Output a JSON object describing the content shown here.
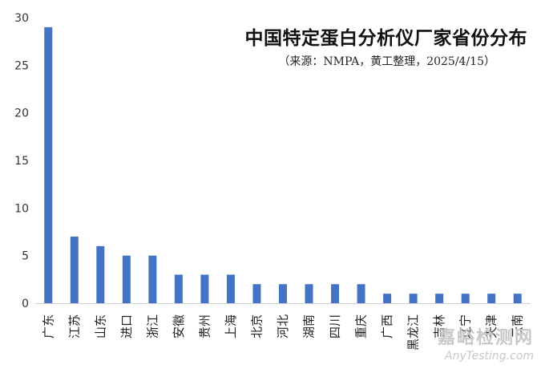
{
  "chart_data": {
    "type": "bar",
    "title": "中国特定蛋白分析仪厂家省份分布",
    "subtitle": "（来源：NMPA，黄工整理，2025/4/15）",
    "categories": [
      "广东",
      "江苏",
      "山东",
      "进口",
      "浙江",
      "安徽",
      "贵州",
      "上海",
      "北京",
      "河北",
      "湖南",
      "四川",
      "重庆",
      "广西",
      "黑龙江",
      "吉林",
      "辽宁",
      "天津",
      "云南"
    ],
    "values": [
      29,
      7,
      6,
      5,
      5,
      3,
      3,
      3,
      2,
      2,
      2,
      2,
      2,
      1,
      1,
      1,
      1,
      1,
      1
    ],
    "ylim": [
      0,
      30
    ],
    "yticks": [
      "0",
      "5",
      "10",
      "15",
      "20",
      "25",
      "30"
    ],
    "xlabel": "",
    "ylabel": "",
    "bar_color": "#4472c4",
    "grid": false,
    "legend": "none"
  },
  "watermark": {
    "main": "嘉峪检测网",
    "sub": "AnyTesting.com"
  }
}
